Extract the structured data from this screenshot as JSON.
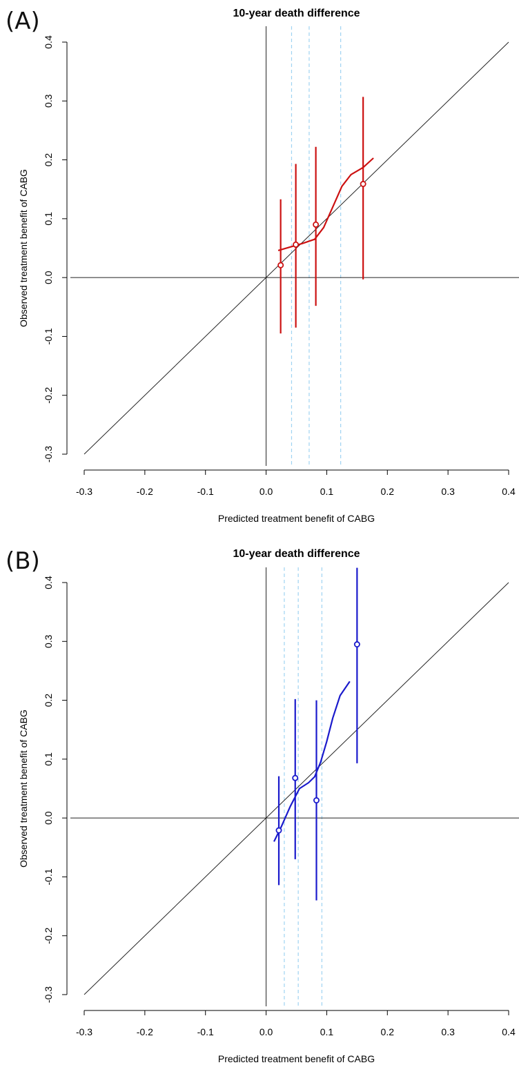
{
  "chart_data": [
    {
      "panel": "(A)",
      "type": "scatter",
      "title": "10-year death difference",
      "xlabel": "Predicted treatment benefit of CABG",
      "ylabel": "Observed treatment benefit of CABG",
      "xlim": [
        -0.3,
        0.4
      ],
      "ylim": [
        -0.3,
        0.4
      ],
      "xticks": [
        "-0.3",
        "-0.2",
        "-0.1",
        "0.0",
        "0.1",
        "0.2",
        "0.3",
        "0.4"
      ],
      "yticks": [
        "-0.3",
        "-0.2",
        "-0.1",
        "0.0",
        "0.1",
        "0.2",
        "0.3",
        "0.4"
      ],
      "color": "#cc1111",
      "reference_line": "identity",
      "zero_lines": true,
      "dashed_vlines": [
        0.042,
        0.071,
        0.123
      ],
      "points": [
        {
          "x": 0.024,
          "y": 0.021,
          "lo": -0.095,
          "hi": 0.133
        },
        {
          "x": 0.049,
          "y": 0.056,
          "lo": -0.085,
          "hi": 0.193
        },
        {
          "x": 0.082,
          "y": 0.09,
          "lo": -0.048,
          "hi": 0.222
        },
        {
          "x": 0.16,
          "y": 0.159,
          "lo": -0.003,
          "hi": 0.307
        }
      ],
      "smooth_curve": [
        [
          0.02,
          0.046
        ],
        [
          0.04,
          0.052
        ],
        [
          0.06,
          0.058
        ],
        [
          0.08,
          0.065
        ],
        [
          0.095,
          0.085
        ],
        [
          0.11,
          0.12
        ],
        [
          0.125,
          0.155
        ],
        [
          0.14,
          0.175
        ],
        [
          0.16,
          0.187
        ],
        [
          0.177,
          0.203
        ]
      ]
    },
    {
      "panel": "(B)",
      "type": "scatter",
      "title": "10-year death difference",
      "xlabel": "Predicted treatment benefit of CABG",
      "ylabel": "Observed treatment benefit of CABG",
      "xlim": [
        -0.3,
        0.4
      ],
      "ylim": [
        -0.3,
        0.4
      ],
      "xticks": [
        "-0.3",
        "-0.2",
        "-0.1",
        "0.0",
        "0.1",
        "0.2",
        "0.3",
        "0.4"
      ],
      "yticks": [
        "-0.3",
        "-0.2",
        "-0.1",
        "0.0",
        "0.1",
        "0.2",
        "0.3",
        "0.4"
      ],
      "color": "#1a1acc",
      "reference_line": "identity",
      "zero_lines": true,
      "dashed_vlines": [
        0.03,
        0.053,
        0.092
      ],
      "points": [
        {
          "x": 0.021,
          "y": -0.021,
          "lo": -0.114,
          "hi": 0.071
        },
        {
          "x": 0.048,
          "y": 0.068,
          "lo": -0.07,
          "hi": 0.202
        },
        {
          "x": 0.083,
          "y": 0.03,
          "lo": -0.14,
          "hi": 0.2
        },
        {
          "x": 0.15,
          "y": 0.295,
          "lo": 0.093,
          "hi": 0.425
        }
      ],
      "smooth_curve": [
        [
          0.013,
          -0.04
        ],
        [
          0.025,
          -0.015
        ],
        [
          0.04,
          0.02
        ],
        [
          0.055,
          0.05
        ],
        [
          0.07,
          0.06
        ],
        [
          0.08,
          0.07
        ],
        [
          0.09,
          0.095
        ],
        [
          0.1,
          0.13
        ],
        [
          0.11,
          0.17
        ],
        [
          0.122,
          0.208
        ],
        [
          0.138,
          0.232
        ]
      ]
    }
  ]
}
